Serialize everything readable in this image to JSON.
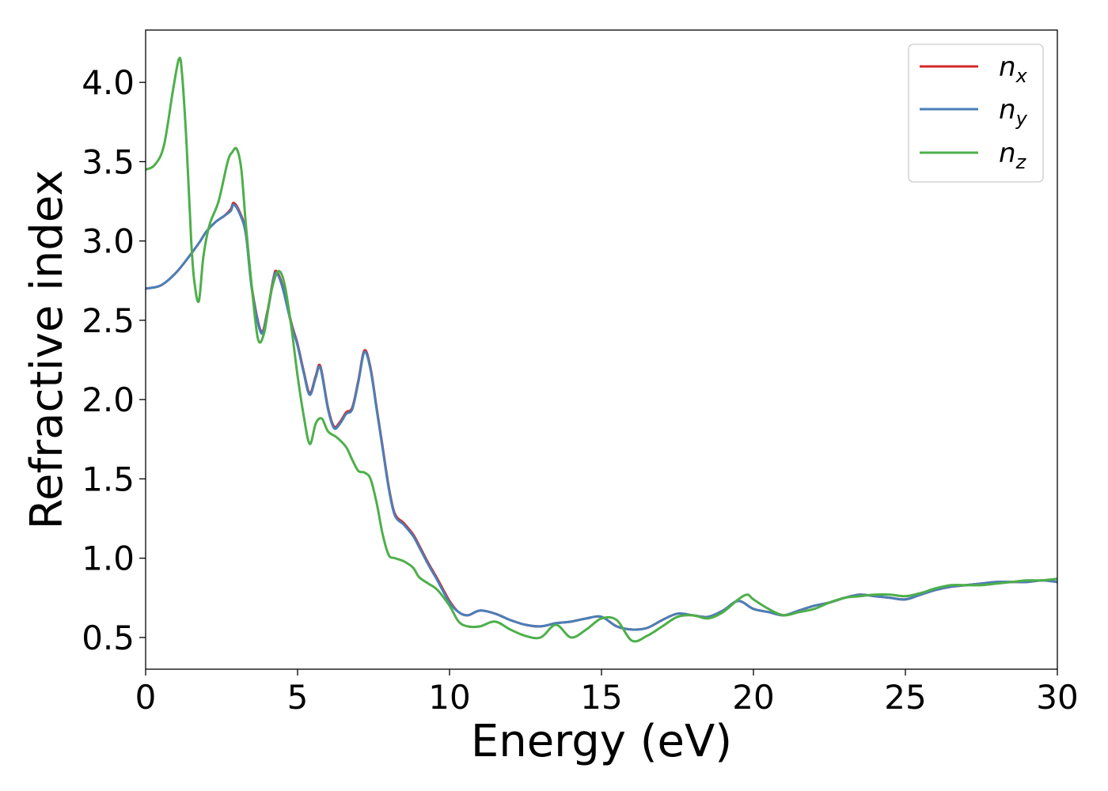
{
  "chart_data": {
    "type": "line",
    "xlabel": "Energy (eV)",
    "ylabel": "Refractive index",
    "xlim": [
      0,
      30
    ],
    "ylim": [
      0.3,
      4.33
    ],
    "xticks": [
      0,
      5,
      10,
      15,
      20,
      25,
      30
    ],
    "xtick_labels": [
      "0",
      "5",
      "10",
      "15",
      "20",
      "25",
      "30"
    ],
    "yticks": [
      0.5,
      1.0,
      1.5,
      2.0,
      2.5,
      3.0,
      3.5,
      4.0
    ],
    "ytick_labels": [
      "0.5",
      "1.0",
      "1.5",
      "2.0",
      "2.5",
      "3.0",
      "3.5",
      "4.0"
    ],
    "grid": false,
    "legend_position": "top-right",
    "series": [
      {
        "name": "n_x",
        "legend_base": "n",
        "legend_sub": "x",
        "color": "#d62728",
        "x": [
          0,
          0.5,
          1.0,
          1.5,
          1.8,
          2.0,
          2.3,
          2.6,
          2.8,
          2.9,
          3.1,
          3.3,
          3.5,
          3.8,
          4.0,
          4.2,
          4.3,
          4.5,
          4.8,
          5.0,
          5.2,
          5.4,
          5.6,
          5.75,
          6.0,
          6.2,
          6.4,
          6.6,
          6.8,
          7.0,
          7.2,
          7.4,
          7.6,
          7.8,
          8.0,
          8.2,
          8.5,
          8.8,
          9.0,
          9.3,
          9.6,
          10.0,
          10.3,
          10.6,
          11.0,
          11.5,
          12.0,
          12.5,
          13.0,
          13.5,
          14.0,
          14.5,
          15.0,
          15.5,
          16.0,
          16.5,
          17.0,
          17.5,
          18.0,
          18.5,
          19.0,
          19.5,
          20.0,
          20.5,
          21.0,
          21.5,
          22.0,
          22.5,
          23.0,
          23.5,
          24.0,
          24.5,
          25.0,
          25.5,
          26.0,
          26.5,
          27.0,
          27.5,
          28.0,
          28.5,
          29.0,
          29.5,
          30.0
        ],
        "y": [
          2.7,
          2.72,
          2.8,
          2.92,
          3.0,
          3.06,
          3.12,
          3.16,
          3.2,
          3.24,
          3.18,
          3.05,
          2.7,
          2.43,
          2.55,
          2.76,
          2.81,
          2.72,
          2.48,
          2.35,
          2.18,
          2.04,
          2.15,
          2.21,
          1.95,
          1.83,
          1.86,
          1.92,
          1.95,
          2.12,
          2.31,
          2.2,
          1.95,
          1.7,
          1.45,
          1.28,
          1.22,
          1.15,
          1.08,
          0.97,
          0.87,
          0.73,
          0.66,
          0.64,
          0.67,
          0.65,
          0.61,
          0.58,
          0.57,
          0.59,
          0.6,
          0.62,
          0.63,
          0.57,
          0.55,
          0.56,
          0.61,
          0.65,
          0.64,
          0.63,
          0.67,
          0.73,
          0.68,
          0.66,
          0.64,
          0.67,
          0.7,
          0.72,
          0.75,
          0.77,
          0.76,
          0.75,
          0.74,
          0.77,
          0.8,
          0.82,
          0.83,
          0.84,
          0.85,
          0.85,
          0.85,
          0.86,
          0.85
        ]
      },
      {
        "name": "n_y",
        "legend_base": "n",
        "legend_sub": "y",
        "color": "#4a7fb8",
        "x": [
          0,
          0.5,
          1.0,
          1.5,
          1.8,
          2.0,
          2.3,
          2.6,
          2.8,
          2.9,
          3.1,
          3.3,
          3.5,
          3.8,
          4.0,
          4.2,
          4.3,
          4.5,
          4.8,
          5.0,
          5.2,
          5.4,
          5.6,
          5.75,
          6.0,
          6.2,
          6.4,
          6.6,
          6.8,
          7.0,
          7.2,
          7.4,
          7.6,
          7.8,
          8.0,
          8.2,
          8.5,
          8.8,
          9.0,
          9.3,
          9.6,
          10.0,
          10.3,
          10.6,
          11.0,
          11.5,
          12.0,
          12.5,
          13.0,
          13.5,
          14.0,
          14.5,
          15.0,
          15.5,
          16.0,
          16.5,
          17.0,
          17.5,
          18.0,
          18.5,
          19.0,
          19.5,
          20.0,
          20.5,
          21.0,
          21.5,
          22.0,
          22.5,
          23.0,
          23.5,
          24.0,
          24.5,
          25.0,
          25.5,
          26.0,
          26.5,
          27.0,
          27.5,
          28.0,
          28.5,
          29.0,
          29.5,
          30.0
        ],
        "y": [
          2.7,
          2.72,
          2.8,
          2.92,
          3.0,
          3.06,
          3.12,
          3.16,
          3.19,
          3.23,
          3.17,
          3.04,
          2.69,
          2.42,
          2.54,
          2.75,
          2.8,
          2.71,
          2.47,
          2.34,
          2.17,
          2.03,
          2.14,
          2.2,
          1.94,
          1.82,
          1.85,
          1.91,
          1.94,
          2.11,
          2.3,
          2.19,
          1.94,
          1.69,
          1.44,
          1.27,
          1.21,
          1.14,
          1.07,
          0.96,
          0.86,
          0.72,
          0.66,
          0.64,
          0.67,
          0.65,
          0.61,
          0.58,
          0.57,
          0.59,
          0.6,
          0.62,
          0.63,
          0.57,
          0.55,
          0.56,
          0.61,
          0.65,
          0.64,
          0.63,
          0.67,
          0.73,
          0.68,
          0.66,
          0.64,
          0.67,
          0.7,
          0.72,
          0.75,
          0.77,
          0.76,
          0.75,
          0.74,
          0.77,
          0.8,
          0.82,
          0.83,
          0.84,
          0.85,
          0.85,
          0.85,
          0.86,
          0.85
        ]
      },
      {
        "name": "n_z",
        "legend_base": "n",
        "legend_sub": "z",
        "color": "#4daf4a",
        "x": [
          0,
          0.3,
          0.6,
          0.9,
          1.1,
          1.2,
          1.35,
          1.5,
          1.6,
          1.75,
          1.9,
          2.1,
          2.4,
          2.7,
          2.85,
          3.0,
          3.15,
          3.3,
          3.5,
          3.7,
          3.9,
          4.1,
          4.3,
          4.45,
          4.6,
          4.8,
          5.0,
          5.2,
          5.4,
          5.6,
          5.8,
          6.0,
          6.3,
          6.6,
          6.8,
          7.0,
          7.2,
          7.4,
          7.6,
          7.8,
          8.0,
          8.2,
          8.5,
          8.8,
          9.0,
          9.3,
          9.6,
          10.0,
          10.3,
          10.6,
          11.0,
          11.5,
          12.0,
          12.5,
          13.0,
          13.5,
          14.0,
          14.5,
          15.0,
          15.5,
          16.0,
          16.5,
          17.0,
          17.5,
          18.0,
          18.5,
          19.0,
          19.5,
          19.8,
          20.0,
          20.5,
          21.0,
          21.5,
          22.0,
          22.5,
          23.0,
          23.5,
          24.0,
          24.5,
          25.0,
          25.5,
          26.0,
          26.5,
          27.0,
          27.5,
          28.0,
          28.5,
          29.0,
          29.5,
          30.0
        ],
        "y": [
          3.45,
          3.48,
          3.6,
          3.95,
          4.15,
          4.05,
          3.6,
          3.0,
          2.75,
          2.62,
          2.9,
          3.1,
          3.25,
          3.5,
          3.56,
          3.58,
          3.45,
          3.1,
          2.7,
          2.38,
          2.42,
          2.65,
          2.79,
          2.8,
          2.7,
          2.45,
          2.15,
          1.9,
          1.72,
          1.85,
          1.88,
          1.8,
          1.76,
          1.7,
          1.62,
          1.55,
          1.54,
          1.5,
          1.35,
          1.15,
          1.02,
          1.0,
          0.98,
          0.94,
          0.88,
          0.84,
          0.8,
          0.7,
          0.6,
          0.57,
          0.57,
          0.6,
          0.55,
          0.51,
          0.5,
          0.58,
          0.5,
          0.55,
          0.62,
          0.61,
          0.48,
          0.51,
          0.57,
          0.63,
          0.64,
          0.62,
          0.66,
          0.74,
          0.77,
          0.74,
          0.68,
          0.64,
          0.66,
          0.68,
          0.72,
          0.75,
          0.76,
          0.77,
          0.77,
          0.76,
          0.78,
          0.81,
          0.83,
          0.83,
          0.83,
          0.84,
          0.85,
          0.86,
          0.86,
          0.87
        ]
      }
    ]
  }
}
